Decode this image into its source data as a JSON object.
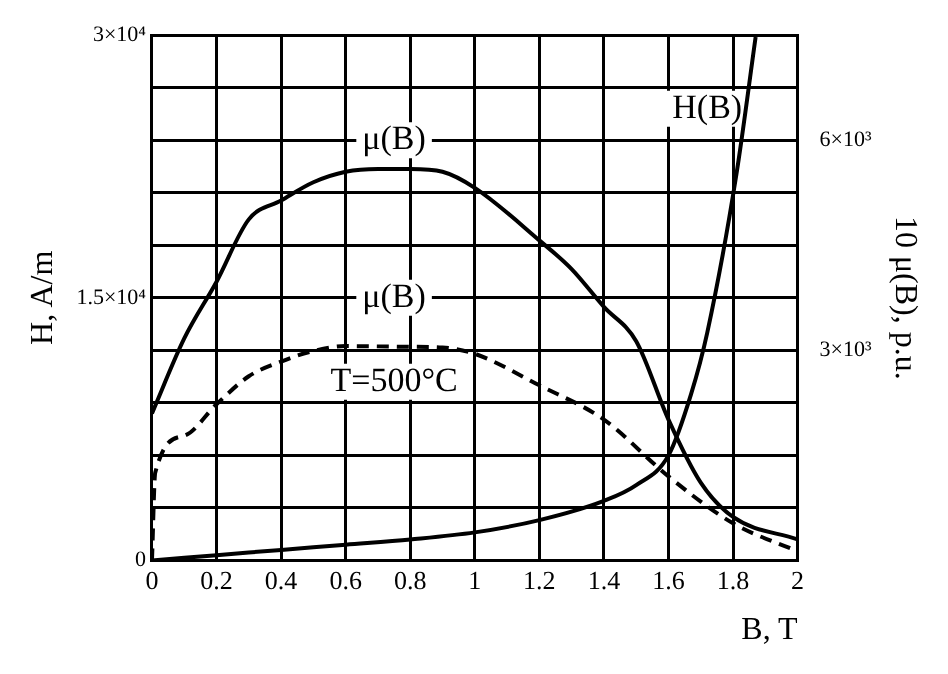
{
  "chart_data": {
    "type": "line",
    "xlabel": "B, T",
    "ylabel": "H, A/m",
    "y2label": "10 μ(B), p.u.",
    "annotations": [
      "T=500°C"
    ],
    "series": [
      {
        "name": "H(B)",
        "color": "#000000",
        "axis": "y",
        "line_style": "solid",
        "x": [
          0,
          0.2,
          0.4,
          0.6,
          0.8,
          1.0,
          1.2,
          1.4,
          1.5,
          1.6,
          1.67,
          1.72,
          1.81,
          1.87
        ],
        "values": [
          0,
          300,
          600,
          900,
          1200,
          1600,
          2300,
          3400,
          4300,
          6000,
          9500,
          13000,
          22000,
          29900
        ]
      },
      {
        "name": "μ(B)",
        "color": "#000000",
        "axis": "y2",
        "line_style": "solid",
        "x": [
          0,
          0.1,
          0.2,
          0.3,
          0.4,
          0.5,
          0.6,
          0.7,
          0.8,
          0.9,
          1.0,
          1.2,
          1.3,
          1.4,
          1.5,
          1.6,
          1.7,
          1.8,
          2.0
        ],
        "values": [
          2100,
          3170,
          3980,
          4870,
          5140,
          5400,
          5550,
          5590,
          5590,
          5550,
          5320,
          4570,
          4160,
          3620,
          3130,
          2010,
          1110,
          620,
          300
        ]
      },
      {
        "name": "μ(B)",
        "color": "#000000",
        "axis": "y2",
        "line_style": "dashed",
        "x": [
          0,
          0.01,
          0.1,
          0.2,
          0.3,
          0.4,
          0.5,
          0.6,
          0.8,
          0.9,
          1.0,
          1.2,
          1.4,
          1.6,
          1.8,
          2.0
        ],
        "values": [
          0,
          1250,
          1780,
          2230,
          2630,
          2840,
          2990,
          3060,
          3050,
          3040,
          2950,
          2500,
          2010,
          1200,
          530,
          130
        ]
      }
    ],
    "xlim": [
      0,
      2
    ],
    "xticks": [
      0,
      0.2,
      0.4,
      0.6,
      0.8,
      1,
      1.2,
      1.4,
      1.6,
      1.8,
      2
    ],
    "ylim": [
      0,
      30000
    ],
    "yticks": [
      0,
      {
        "value": 3000,
        "label": null
      },
      {
        "value": 6000,
        "label": null
      },
      {
        "value": 9000,
        "label": null
      },
      {
        "value": 12000,
        "label": null
      },
      {
        "value": 15000,
        "label": "1.5×10⁴"
      },
      {
        "value": 18000,
        "label": null
      },
      {
        "value": 21000,
        "label": null
      },
      {
        "value": 24000,
        "label": null
      },
      {
        "value": 27000,
        "label": null
      },
      {
        "value": 30000,
        "label": "3×10⁴"
      }
    ],
    "y2lim": [
      0,
      7500
    ],
    "y2ticks": [
      {
        "value": 3000,
        "label": "3×10³"
      },
      {
        "value": 6000,
        "label": "6×10³"
      }
    ],
    "grid": true,
    "legend": false,
    "marker": "none"
  }
}
